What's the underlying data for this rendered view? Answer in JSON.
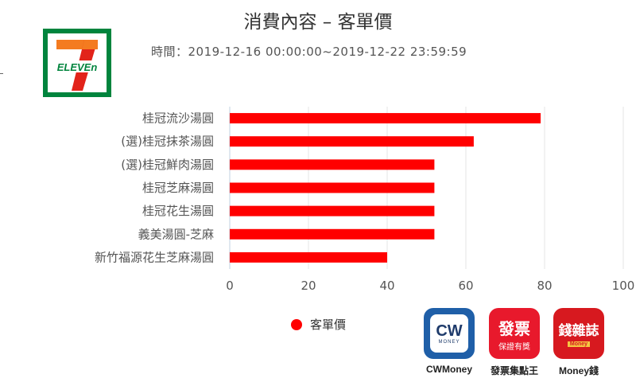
{
  "title": "消費內容 – 客單價",
  "subtitle": "時間：2019-12-16 00:00:00~2019-12-22 23:59:59",
  "logo": {
    "text": "ELEVEn",
    "colors": [
      "#00843d",
      "#f47b20",
      "#e2231a"
    ]
  },
  "chart_data": {
    "type": "bar",
    "orientation": "horizontal",
    "categories": [
      "桂冠流沙湯圓",
      "(選)桂冠抹茶湯圓",
      "(選)桂冠鮮肉湯圓",
      "桂冠芝麻湯圓",
      "桂冠花生湯圓",
      "義美湯圓-芝麻",
      "新竹福源花生芝麻湯圓"
    ],
    "series": [
      {
        "name": "客單價",
        "values": [
          79,
          62,
          52,
          52,
          52,
          52,
          40
        ],
        "color": "#ff0000"
      }
    ],
    "xlim": [
      0,
      100
    ],
    "xticks": [
      "0",
      "20",
      "40",
      "60",
      "80",
      "100"
    ],
    "grid": true,
    "legend": "bottom"
  },
  "legend": {
    "label": "客單價",
    "color": "#ff0000"
  },
  "apps": [
    {
      "name": "CWMoney",
      "icon": "cwmoney-icon",
      "icon_text": "CW",
      "icon_sub": "MONEY",
      "bg": "#1f5fa8"
    },
    {
      "name": "發票集點王",
      "icon": "invoice-king-icon",
      "icon_text": "發票",
      "icon_sub": "保證有獎",
      "bg": "#e8192c"
    },
    {
      "name": "Money錢",
      "icon": "money-magazine-icon",
      "icon_text": "錢雜誌",
      "icon_sub": "Money",
      "bg": "#d7191f"
    }
  ]
}
